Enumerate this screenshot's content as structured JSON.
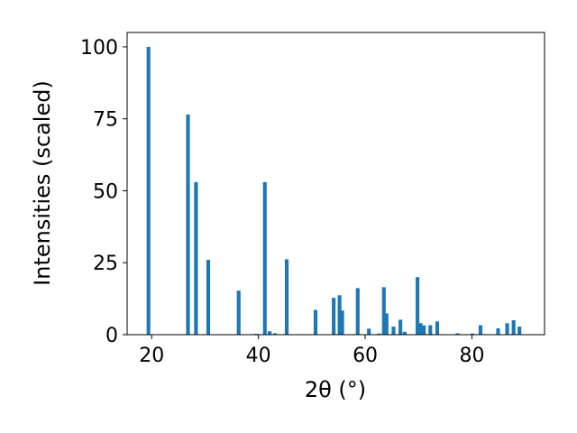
{
  "chart_data": {
    "type": "bar",
    "xlabel": "2θ (°)",
    "ylabel": "Intensities (scaled)",
    "xlim": [
      15.4,
      93.6
    ],
    "ylim": [
      0,
      105
    ],
    "grid": false,
    "bar_width": 0.7,
    "bar_color": "#1f77b4",
    "x_ticks": [
      20,
      40,
      60,
      80
    ],
    "y_ticks": [
      0,
      25,
      50,
      75,
      100
    ],
    "x": [
      19.4,
      26.8,
      28.3,
      30.6,
      36.3,
      39.6,
      41.2,
      42.1,
      43.1,
      45.3,
      50.7,
      54.1,
      55.2,
      55.7,
      58.6,
      60.7,
      62.6,
      63.5,
      64.0,
      65.3,
      66.6,
      67.4,
      69.8,
      70.4,
      71.0,
      72.2,
      73.5,
      77.3,
      80.1,
      81.6,
      84.9,
      86.6,
      87.8,
      88.9
    ],
    "values": [
      100,
      76.5,
      53,
      26,
      15.3,
      0.3,
      53,
      1.2,
      0.5,
      26.2,
      8.6,
      12.8,
      13.7,
      8.4,
      16.2,
      2.1,
      0.4,
      16.5,
      7.4,
      2.8,
      5.2,
      1.0,
      20,
      4.0,
      3.2,
      3.3,
      4.6,
      0.5,
      0.4,
      3.3,
      2.2,
      4.0,
      5.0,
      2.8
    ]
  }
}
